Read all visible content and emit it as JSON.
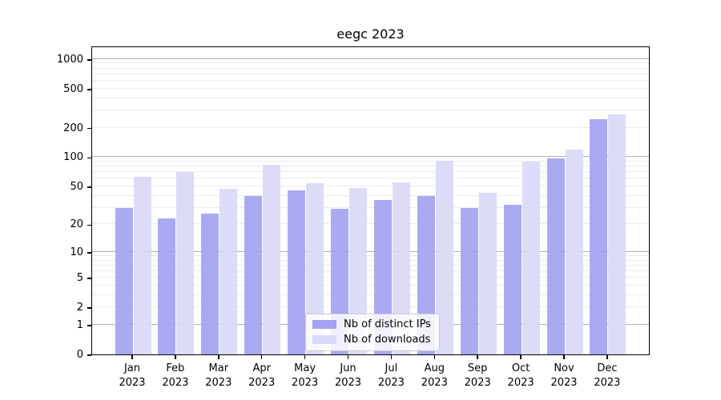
{
  "chart_data": {
    "type": "bar",
    "title": "eegc 2023",
    "categories": [
      "Jan",
      "Feb",
      "Mar",
      "Apr",
      "May",
      "Jun",
      "Jul",
      "Aug",
      "Sep",
      "Oct",
      "Nov",
      "Dec"
    ],
    "category_year": "2023",
    "series": [
      {
        "name": "Nb of distinct IPs",
        "color": "#a3a3f2",
        "values": [
          30,
          23,
          26,
          40,
          45,
          29,
          36,
          40,
          30,
          32,
          97,
          243
        ]
      },
      {
        "name": "Nb of downloads",
        "color": "#d9d9f8",
        "values": [
          63,
          70,
          47,
          83,
          54,
          48,
          55,
          92,
          43,
          90,
          120,
          275
        ]
      }
    ],
    "yscale": "log1p",
    "yticks": [
      0,
      1,
      2,
      5,
      10,
      20,
      50,
      100,
      200,
      500,
      1000
    ],
    "minor_gridline_values": [
      2,
      3,
      4,
      5,
      6,
      7,
      8,
      9,
      20,
      30,
      40,
      50,
      60,
      70,
      80,
      90,
      200,
      300,
      400,
      500,
      600,
      700,
      800,
      900
    ],
    "major_gridline_values": [
      1,
      10,
      100,
      1000
    ],
    "ymax": 1320,
    "xlabel": "",
    "ylabel": "",
    "grid": true,
    "legend_position": "bottom-center",
    "colors": {
      "axis": "#000000",
      "major_grid": "#b0b0b0",
      "minor_grid": "#ebebeb",
      "background": "#ffffff"
    }
  }
}
